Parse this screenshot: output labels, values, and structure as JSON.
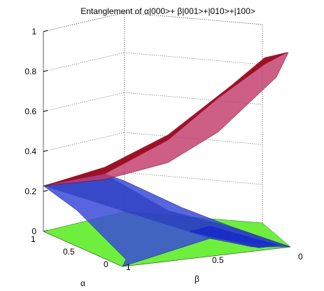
{
  "chart_data": {
    "type": "surface3d",
    "title": "Entanglement of α|000>+ β|001>+|010>+|100>",
    "xlabel": "α",
    "ylabel": "β",
    "zlabel": "",
    "zlim": [
      0,
      1
    ],
    "z_ticks": [
      "0",
      "0.2",
      "0.4",
      "0.6",
      "0.8",
      "1"
    ],
    "alpha_ticks": [
      "1",
      "0.5",
      "0"
    ],
    "beta_ticks": [
      "1",
      "0.5",
      "0"
    ],
    "grid": true,
    "surfaces": [
      {
        "color": "#a0102a",
        "description_values": {
          "z_at_alpha1_beta1": 0.23,
          "z_at_alpha0_beta0": 0.87
        }
      },
      {
        "color": "#3344cc",
        "description_values": {
          "z_at_alpha1_beta1": 0.23,
          "z_at_alpha0_beta0": 0.0
        }
      },
      {
        "color": "#66ee33",
        "description_values": {
          "z": 0.0
        }
      }
    ]
  }
}
